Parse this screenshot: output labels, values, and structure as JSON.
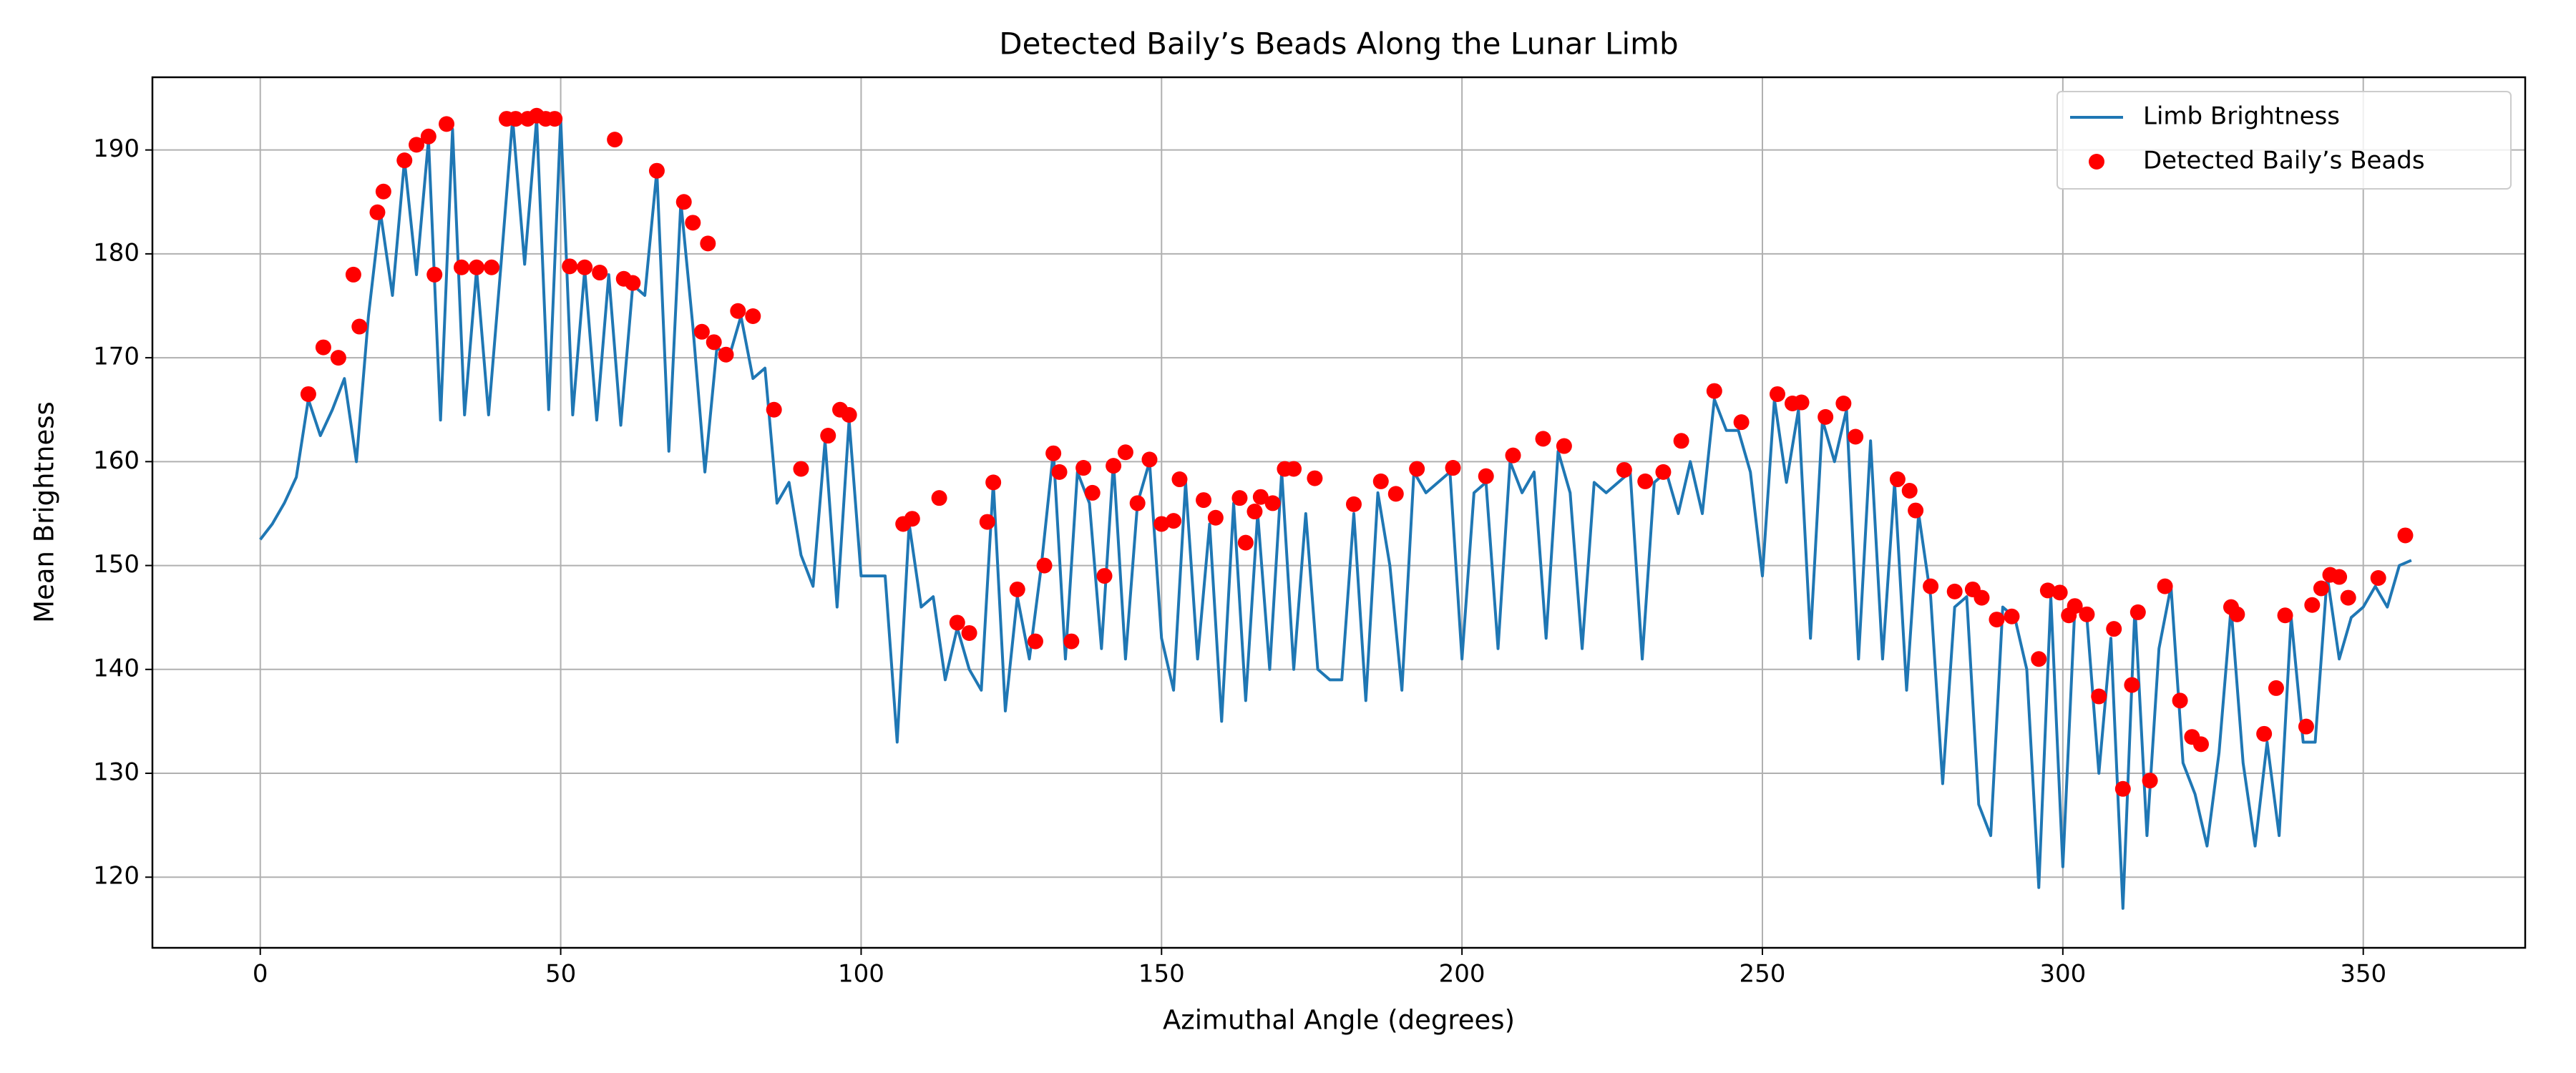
{
  "chart_data": {
    "type": "line",
    "title": "Detected Baily’s Beads Along the Lunar Limb",
    "x_label": "Azimuthal Angle (degrees)",
    "y_label": "Mean Brightness",
    "xlim": [
      -17.95,
      376.95
    ],
    "ylim": [
      113.2,
      197.0
    ],
    "xticks": [
      0,
      50,
      100,
      150,
      200,
      250,
      300,
      350
    ],
    "yticks": [
      120,
      130,
      140,
      150,
      160,
      170,
      180,
      190
    ],
    "grid": true,
    "legend": "upper right",
    "series": [
      {
        "name": "Limb Brightness",
        "type": "line",
        "color": "#1f77b4",
        "x": [
          0,
          2,
          4,
          6,
          8,
          10,
          12,
          14,
          16,
          18,
          20,
          22,
          24,
          26,
          28,
          30,
          32,
          34,
          36,
          38,
          40,
          42,
          44,
          46,
          48,
          50,
          52,
          54,
          56,
          58,
          60,
          62,
          64,
          66,
          68,
          70,
          72,
          74,
          76,
          78,
          80,
          82,
          84,
          86,
          88,
          90,
          92,
          94,
          96,
          98,
          100,
          102,
          104,
          106,
          108,
          110,
          112,
          114,
          116,
          118,
          120,
          122,
          124,
          126,
          128,
          130,
          132,
          134,
          136,
          138,
          140,
          142,
          144,
          146,
          148,
          150,
          152,
          154,
          156,
          158,
          160,
          162,
          164,
          166,
          168,
          170,
          172,
          174,
          176,
          178,
          180,
          182,
          184,
          186,
          188,
          190,
          192,
          194,
          196,
          198,
          200,
          202,
          204,
          206,
          208,
          210,
          212,
          214,
          216,
          218,
          220,
          222,
          224,
          226,
          228,
          230,
          232,
          234,
          236,
          238,
          240,
          242,
          244,
          246,
          248,
          250,
          252,
          254,
          256,
          258,
          260,
          262,
          264,
          266,
          268,
          270,
          272,
          274,
          276,
          278,
          280,
          282,
          284,
          286,
          288,
          290,
          292,
          294,
          296,
          298,
          300,
          302,
          304,
          306,
          308,
          310,
          312,
          314,
          316,
          318,
          320,
          322,
          324,
          326,
          328,
          330,
          332,
          334,
          336,
          338,
          340,
          342,
          344,
          346,
          348,
          350,
          352,
          354,
          356,
          358
        ],
        "values": [
          152.5,
          154,
          156,
          158.5,
          166,
          162.5,
          165,
          168,
          160,
          174,
          184,
          176,
          189,
          178,
          191,
          164,
          192,
          164.5,
          178.5,
          164.5,
          178.5,
          193,
          179,
          193,
          165,
          193,
          164.5,
          178.5,
          164,
          178,
          163.5,
          177,
          176,
          188,
          161,
          185,
          173,
          159,
          171,
          170,
          174,
          168,
          169,
          156,
          158,
          151,
          148,
          162,
          146,
          164,
          149,
          149,
          149,
          133,
          154,
          146,
          147,
          139,
          144,
          140,
          138,
          158,
          136,
          147,
          141,
          150,
          161,
          141,
          159,
          156,
          142,
          160,
          141,
          156,
          160,
          143,
          138,
          158,
          141,
          154,
          135,
          156,
          137,
          155,
          140,
          159,
          140,
          155,
          140,
          139,
          139,
          155,
          137,
          157,
          150,
          138,
          159,
          157,
          158,
          159,
          141,
          157,
          158,
          142,
          160,
          157,
          159,
          143,
          161,
          157,
          142,
          158,
          157,
          158,
          159,
          141,
          158,
          159,
          155,
          160,
          155,
          166,
          163,
          163,
          159,
          149,
          166,
          158,
          165,
          143,
          164,
          160,
          165,
          141,
          162,
          141,
          158,
          138,
          155,
          147,
          129,
          146,
          147,
          127,
          124,
          146,
          145,
          140,
          119,
          147,
          121,
          146,
          145,
          130,
          143,
          117,
          146,
          124,
          142,
          148,
          131,
          128,
          123,
          132,
          146,
          131,
          123,
          133,
          124,
          145,
          133,
          133,
          149,
          141,
          145,
          146,
          148,
          146,
          150,
          150.5
        ]
      },
      {
        "name": "Detected Baily’s Beads",
        "type": "scatter",
        "color": "#ff0000",
        "x": [
          8,
          10.5,
          13,
          15.5,
          16.5,
          19.5,
          20.5,
          24,
          26,
          28,
          29,
          31,
          33.5,
          36,
          38.5,
          41,
          42.5,
          44.5,
          46,
          47.5,
          49,
          51.5,
          54,
          56.5,
          59,
          60.5,
          62,
          66,
          70.5,
          72,
          73.5,
          74.5,
          75.5,
          77.5,
          79.5,
          82,
          85.5,
          90,
          94.5,
          96.5,
          98,
          107,
          108.5,
          113,
          116,
          118,
          121,
          122,
          126,
          129,
          130.5,
          132,
          133,
          135,
          137,
          138.5,
          140.5,
          142,
          144,
          146,
          148,
          150,
          152,
          153,
          157,
          159,
          163,
          164,
          165.5,
          166.5,
          168.5,
          170.5,
          172,
          175.5,
          182,
          186.5,
          189,
          192.5,
          198.5,
          204,
          208.5,
          213.5,
          217,
          227,
          230.5,
          233.5,
          236.5,
          242,
          246.5,
          252.5,
          255,
          256.5,
          260.5,
          263.5,
          265.5,
          272.5,
          274.5,
          275.5,
          278,
          282,
          285,
          286.5,
          289,
          291.5,
          296,
          297.5,
          299.5,
          301,
          302,
          304,
          306,
          308.5,
          310,
          311.5,
          312.5,
          314.5,
          317,
          319.5,
          321.5,
          323,
          328,
          329,
          333.5,
          335.5,
          337,
          340.5,
          341.5,
          343,
          344.5,
          346,
          347.5,
          352.5,
          357
        ],
        "values": [
          166.5,
          171,
          170,
          178,
          173,
          184,
          186,
          189,
          190.5,
          191.3,
          178,
          192.5,
          178.7,
          178.7,
          178.7,
          193,
          193,
          193,
          193.3,
          193,
          193,
          178.8,
          178.7,
          178.2,
          191,
          177.6,
          177.2,
          188,
          185,
          183,
          172.5,
          181,
          171.5,
          170.3,
          174.5,
          174,
          165,
          159.3,
          162.5,
          165,
          164.5,
          154,
          154.5,
          156.5,
          144.5,
          143.5,
          154.2,
          158,
          147.7,
          142.7,
          150,
          160.8,
          159,
          142.7,
          159.4,
          157,
          149,
          159.6,
          160.9,
          156,
          160.2,
          154,
          154.3,
          158.3,
          156.3,
          154.6,
          156.5,
          152.2,
          155.2,
          156.6,
          156,
          159.3,
          159.3,
          158.4,
          155.9,
          158.1,
          156.9,
          159.3,
          159.4,
          158.6,
          160.6,
          162.2,
          161.5,
          159.2,
          158.1,
          159,
          162,
          166.8,
          163.8,
          166.5,
          165.6,
          165.7,
          164.3,
          165.6,
          162.4,
          158.3,
          157.2,
          155.3,
          148,
          147.5,
          147.7,
          146.9,
          144.8,
          145.1,
          141,
          147.6,
          147.4,
          145.2,
          146.1,
          145.3,
          137.4,
          143.9,
          128.5,
          138.5,
          145.5,
          129.3,
          148,
          137,
          133.5,
          132.8,
          146,
          145.3,
          133.8,
          138.2,
          145.2,
          134.5,
          146.2,
          147.8,
          149.1,
          148.9,
          146.9,
          148.8,
          152.9
        ]
      }
    ]
  }
}
